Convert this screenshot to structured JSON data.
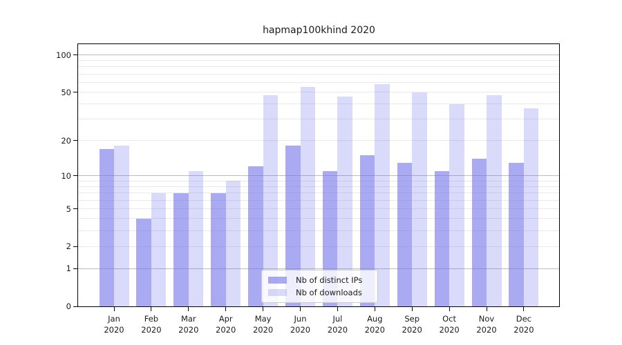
{
  "title": "hapmap100khind 2020",
  "colors": {
    "bar_base": "#7171ea",
    "bar_distinct_ips": "rgba(113,113,234,0.60)",
    "bar_downloads": "rgba(113,113,234,0.26)",
    "grid_major": "#bbbbbb",
    "grid_minor": "#e9e9e9",
    "axis": "#000000",
    "text": "#1a1a1a"
  },
  "legend": {
    "items": [
      {
        "label": "Nb of distinct IPs"
      },
      {
        "label": "Nb of downloads"
      }
    ]
  },
  "chart_data": {
    "type": "bar",
    "title": "hapmap100khind 2020",
    "xlabel": "",
    "ylabel": "",
    "yscale": "log1p",
    "ylim": [
      0,
      122
    ],
    "yticks": [
      0,
      1,
      2,
      5,
      10,
      20,
      50,
      100
    ],
    "grid": {
      "on": true,
      "major": [
        1,
        10,
        100
      ],
      "minor": [
        2,
        3,
        4,
        5,
        6,
        7,
        8,
        9,
        20,
        30,
        40,
        50,
        60,
        70,
        80,
        90
      ]
    },
    "legend_position": "lower center",
    "categories": [
      {
        "month": "Jan",
        "year": "2020"
      },
      {
        "month": "Feb",
        "year": "2020"
      },
      {
        "month": "Mar",
        "year": "2020"
      },
      {
        "month": "Apr",
        "year": "2020"
      },
      {
        "month": "May",
        "year": "2020"
      },
      {
        "month": "Jun",
        "year": "2020"
      },
      {
        "month": "Jul",
        "year": "2020"
      },
      {
        "month": "Aug",
        "year": "2020"
      },
      {
        "month": "Sep",
        "year": "2020"
      },
      {
        "month": "Oct",
        "year": "2020"
      },
      {
        "month": "Nov",
        "year": "2020"
      },
      {
        "month": "Dec",
        "year": "2020"
      }
    ],
    "series": [
      {
        "name": "Nb of distinct IPs",
        "color": "rgba(113,113,234,0.60)",
        "values": [
          17,
          4,
          7,
          7,
          12,
          18,
          11,
          15,
          13,
          11,
          14,
          13
        ]
      },
      {
        "name": "Nb of downloads",
        "color": "rgba(113,113,234,0.26)",
        "values": [
          18,
          7,
          11,
          9,
          47,
          55,
          46,
          58,
          50,
          40,
          47,
          37
        ]
      }
    ]
  }
}
